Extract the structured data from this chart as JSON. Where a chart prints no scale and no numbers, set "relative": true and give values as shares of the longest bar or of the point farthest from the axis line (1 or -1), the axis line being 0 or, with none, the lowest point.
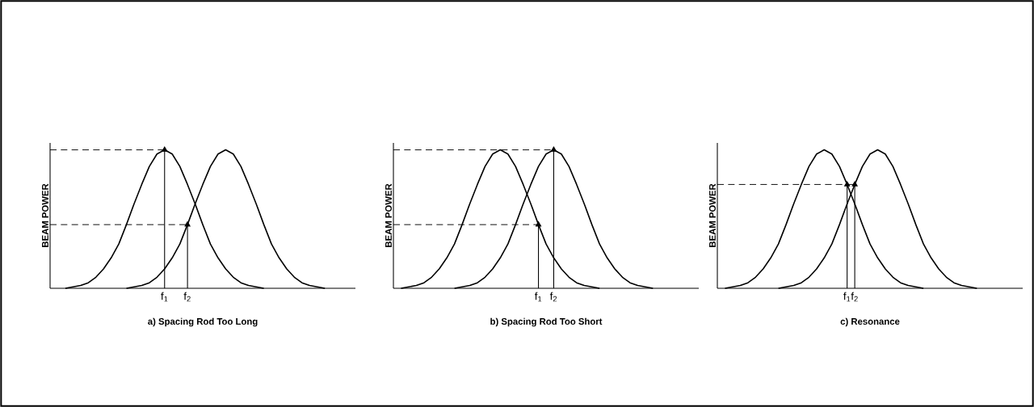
{
  "chart_data": [
    {
      "type": "line",
      "relative": true,
      "title": "a)   Spacing Rod Too Long",
      "ylabel": "BEAM POWER",
      "categories": [
        null,
        null,
        null,
        null,
        null,
        null,
        null,
        null,
        null,
        null,
        null,
        null,
        null,
        null,
        null,
        "f$_{1}$",
        null,
        null,
        "f$_{2}$",
        null,
        null,
        null,
        null,
        null,
        null,
        null,
        null,
        null,
        null,
        null,
        null,
        null,
        null,
        null,
        null,
        null,
        null,
        null,
        null,
        null,
        null
      ],
      "series": [
        {
          "color": "#000000",
          "values": [
            null,
            null,
            0,
            0.01,
            0.02,
            0.04,
            0.08,
            0.14,
            0.22,
            0.32,
            0.46,
            0.61,
            0.75,
            0.88,
            0.97,
            1,
            0.97,
            0.88,
            0.75,
            0.61,
            0.46,
            0.32,
            0.22,
            0.14,
            0.08,
            0.04,
            0.02,
            0.01,
            0,
            null,
            null,
            null,
            null,
            null,
            null,
            null,
            null,
            null,
            null,
            null,
            null
          ]
        },
        {
          "color": "#000000",
          "values": [
            null,
            null,
            null,
            null,
            null,
            null,
            null,
            null,
            null,
            null,
            0,
            0.01,
            0.02,
            0.04,
            0.08,
            0.14,
            0.22,
            0.32,
            0.46,
            0.61,
            0.75,
            0.88,
            0.97,
            1,
            0.97,
            0.88,
            0.75,
            0.61,
            0.46,
            0.32,
            0.22,
            0.14,
            0.08,
            0.04,
            0.02,
            0.01,
            0,
            null,
            null,
            null,
            null
          ]
        },
        {
          "type": "lollipop",
          "marker": "triangle",
          "color": "#000000",
          "values": [
            null,
            null,
            null,
            null,
            null,
            null,
            null,
            null,
            null,
            null,
            null,
            null,
            null,
            null,
            null,
            1,
            null,
            null,
            0.46,
            null,
            null,
            null,
            null,
            null,
            null,
            null,
            null,
            null,
            null,
            null,
            null,
            null,
            null,
            null,
            null,
            null,
            null,
            null,
            null,
            null,
            null
          ]
        }
      ],
      "ref_lines": [
        {
          "axis": "y",
          "value": 1,
          "line_style": "dashed"
        },
        {
          "axis": "y",
          "value": 0.46,
          "line_style": "dashed"
        }
      ]
    },
    {
      "type": "line",
      "relative": true,
      "title": "b)   Spacing Rod Too Short",
      "ylabel": "BEAM POWER",
      "categories": [
        null,
        null,
        null,
        null,
        null,
        null,
        null,
        null,
        null,
        null,
        null,
        null,
        null,
        null,
        null,
        null,
        null,
        null,
        null,
        "f$_{1}$",
        null,
        "f$_{2}$",
        null,
        null,
        null,
        null,
        null,
        null,
        null,
        null,
        null,
        null,
        null,
        null,
        null,
        null,
        null,
        null,
        null,
        null,
        null
      ],
      "series": [
        {
          "color": "#000000",
          "values": [
            null,
            0,
            0.01,
            0.02,
            0.04,
            0.08,
            0.14,
            0.22,
            0.32,
            0.46,
            0.61,
            0.75,
            0.88,
            0.97,
            1,
            0.97,
            0.88,
            0.75,
            0.61,
            0.46,
            0.32,
            0.22,
            0.14,
            0.08,
            0.04,
            0.02,
            0.01,
            0,
            null,
            null,
            null,
            null,
            null,
            null,
            null,
            null,
            null,
            null,
            null,
            null,
            null
          ]
        },
        {
          "type": "line",
          "color": "#000000",
          "values": [
            null,
            null,
            null,
            null,
            null,
            null,
            null,
            null,
            0,
            0.01,
            0.02,
            0.04,
            0.08,
            0.14,
            0.22,
            0.32,
            0.46,
            0.61,
            0.75,
            0.88,
            0.97,
            1,
            0.97,
            0.88,
            0.75,
            0.61,
            0.46,
            0.32,
            0.22,
            0.14,
            0.08,
            0.04,
            0.02,
            0.01,
            0,
            null,
            null,
            null,
            null,
            null,
            null
          ]
        },
        {
          "type": "lollipop",
          "marker": "triangle",
          "color": "#000000",
          "values": [
            null,
            null,
            null,
            null,
            null,
            null,
            null,
            null,
            null,
            null,
            null,
            null,
            null,
            null,
            null,
            null,
            null,
            null,
            null,
            0.46,
            null,
            1,
            null,
            null,
            null,
            null,
            null,
            null,
            null,
            null,
            null,
            null,
            null,
            null,
            null,
            null,
            null,
            null,
            null,
            null,
            null
          ]
        }
      ],
      "ref_lines": [
        {
          "axis": "y",
          "value": 1,
          "line_style": "dashed"
        },
        {
          "axis": "y",
          "value": 0.46,
          "line_style": "dashed"
        }
      ]
    },
    {
      "type": "line",
      "relative": true,
      "title": "c)   Resonance",
      "ylabel": "BEAM POWER",
      "categories": [
        null,
        null,
        null,
        null,
        null,
        null,
        null,
        null,
        null,
        null,
        null,
        null,
        null,
        null,
        null,
        null,
        null,
        "f$_{1}$",
        "f$_{2}$",
        null,
        null,
        null,
        null,
        null,
        null,
        null,
        null,
        null,
        null,
        null,
        null,
        null,
        null,
        null,
        null,
        null,
        null,
        null,
        null,
        null,
        null
      ],
      "series": [
        {
          "color": "#000000",
          "values": [
            null,
            0,
            0.01,
            0.02,
            0.04,
            0.08,
            0.14,
            0.22,
            0.32,
            0.46,
            0.61,
            0.75,
            0.88,
            0.97,
            1,
            0.97,
            0.88,
            0.75,
            0.61,
            0.46,
            0.32,
            0.22,
            0.14,
            0.08,
            0.04,
            0.02,
            0.01,
            0,
            null,
            null,
            null,
            null,
            null,
            null,
            null,
            null,
            null,
            null,
            null,
            null,
            null
          ]
        },
        {
          "type": "line",
          "color": "#000000",
          "values": [
            null,
            null,
            null,
            null,
            null,
            null,
            null,
            null,
            0,
            0.01,
            0.02,
            0.04,
            0.08,
            0.14,
            0.22,
            0.32,
            0.46,
            0.61,
            0.75,
            0.88,
            0.97,
            1,
            0.97,
            0.88,
            0.75,
            0.61,
            0.46,
            0.32,
            0.22,
            0.14,
            0.08,
            0.04,
            0.02,
            0.01,
            0,
            null,
            null,
            null,
            null,
            null,
            null
          ]
        },
        {
          "type": "lollipop",
          "marker": "triangle",
          "color": "#000000",
          "values": [
            null,
            null,
            null,
            null,
            null,
            null,
            null,
            null,
            null,
            null,
            null,
            null,
            null,
            null,
            null,
            null,
            null,
            0.75,
            0.75,
            null,
            null,
            null,
            null,
            null,
            null,
            null,
            null,
            null,
            null,
            null,
            null,
            null,
            null,
            null,
            null,
            null,
            null,
            null,
            null,
            null,
            null
          ]
        }
      ],
      "ref_lines": [
        {
          "axis": "y",
          "value": 0.75,
          "line_style": "dashed"
        }
      ]
    }
  ]
}
